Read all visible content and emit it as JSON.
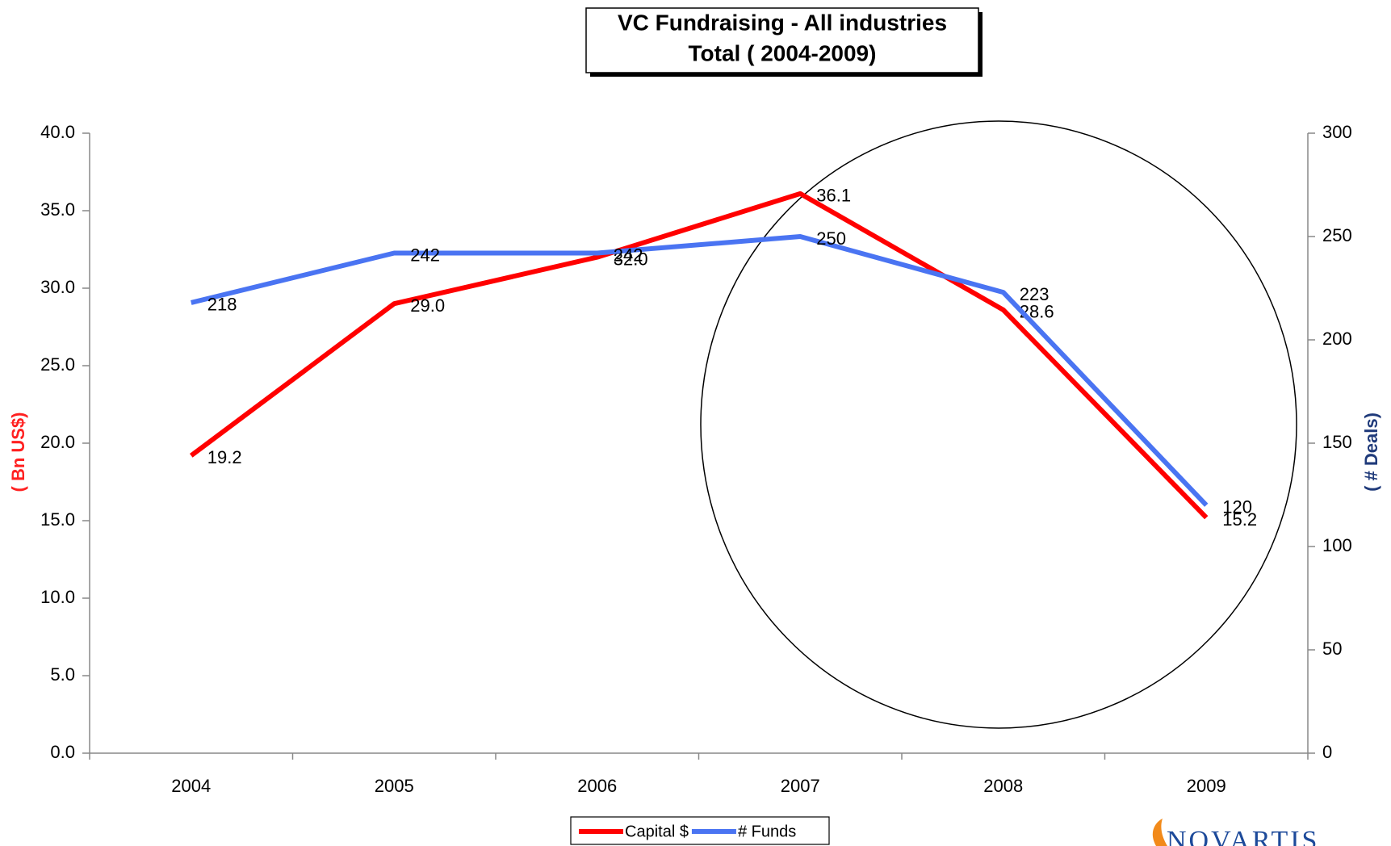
{
  "chart_data": {
    "type": "line",
    "title": "VC Fundraising - All industries",
    "subtitle": "Total ( 2004-2009)",
    "y_label": "( Bn US$)",
    "y2_label": "( # Deals)",
    "categories": [
      "2004",
      "2005",
      "2006",
      "2007",
      "2008",
      "2009"
    ],
    "series": [
      {
        "name": "Capital $",
        "color": "#ff0000",
        "values": [
          19.2,
          29.0,
          32.0,
          36.1,
          28.6,
          15.2
        ],
        "value_labels": [
          "19.2",
          "29.0",
          "32.0",
          "36.1",
          "28.6",
          "15.2"
        ]
      },
      {
        "name": "# Funds",
        "color": "#4a74f2",
        "axis": "y2",
        "values": [
          218,
          242,
          242,
          250,
          223,
          120
        ]
      }
    ],
    "ylim": [
      0,
      40
    ],
    "yticks": [
      {
        "value": 0,
        "label": "0.0"
      },
      {
        "value": 5,
        "label": "5.0"
      },
      {
        "value": 10,
        "label": "10.0"
      },
      {
        "value": 15,
        "label": "15.0"
      },
      {
        "value": 20,
        "label": "20.0"
      },
      {
        "value": 25,
        "label": "25.0"
      },
      {
        "value": 30,
        "label": "30.0"
      },
      {
        "value": 35,
        "label": "35.0"
      },
      {
        "value": 40,
        "label": "40.0"
      }
    ],
    "y2lim": [
      0,
      300
    ],
    "y2ticks": [
      0,
      50,
      100,
      150,
      200,
      250,
      300
    ],
    "y_label_color": "#ff2020",
    "y2_label_color": "#1f3a7a",
    "grid": false,
    "legend": "bottom",
    "logo": "NOVARTIS"
  }
}
